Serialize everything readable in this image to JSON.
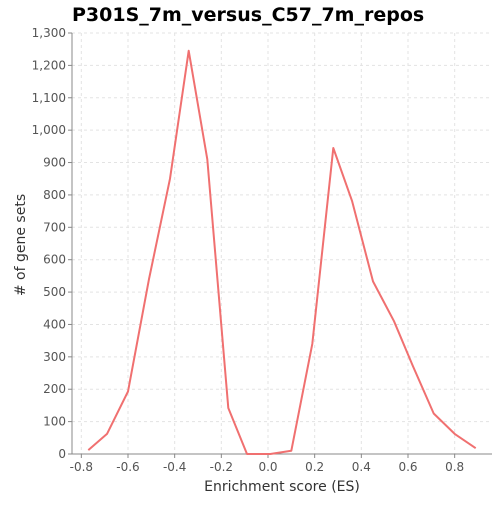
{
  "chart_data": {
    "type": "line",
    "title": "P301S_7m_versus_C57_7m_repos",
    "xlabel": "Enrichment score (ES)",
    "ylabel": "# of gene sets",
    "xlim": [
      -0.84,
      0.96
    ],
    "ylim": [
      0,
      1300
    ],
    "xticks": [
      -0.8,
      -0.6,
      -0.4,
      -0.2,
      0.0,
      0.2,
      0.4,
      0.6,
      0.8
    ],
    "xtick_labels": [
      "-0.8",
      "-0.6",
      "-0.4",
      "-0.2",
      "0.0",
      "0.2",
      "0.4",
      "0.6",
      "0.8"
    ],
    "yticks": [
      0,
      100,
      200,
      300,
      400,
      500,
      600,
      700,
      800,
      900,
      1000,
      1100,
      1200,
      1300
    ],
    "ytick_labels": [
      "0",
      "100",
      "200",
      "300",
      "400",
      "500",
      "600",
      "700",
      "800",
      "900",
      "1,000",
      "1,100",
      "1,200",
      "1,300"
    ],
    "grid": true,
    "series": [
      {
        "color": "#f07070",
        "x": [
          -0.77,
          -0.69,
          -0.6,
          -0.51,
          -0.42,
          -0.34,
          -0.26,
          -0.17,
          -0.09,
          0.01,
          0.1,
          0.19,
          0.28,
          0.36,
          0.45,
          0.54,
          0.62,
          0.71,
          0.8,
          0.89
        ],
        "y": [
          12,
          62,
          193,
          540,
          850,
          1245,
          910,
          142,
          0,
          0,
          10,
          340,
          945,
          782,
          533,
          410,
          273,
          125,
          62,
          18
        ]
      }
    ]
  }
}
